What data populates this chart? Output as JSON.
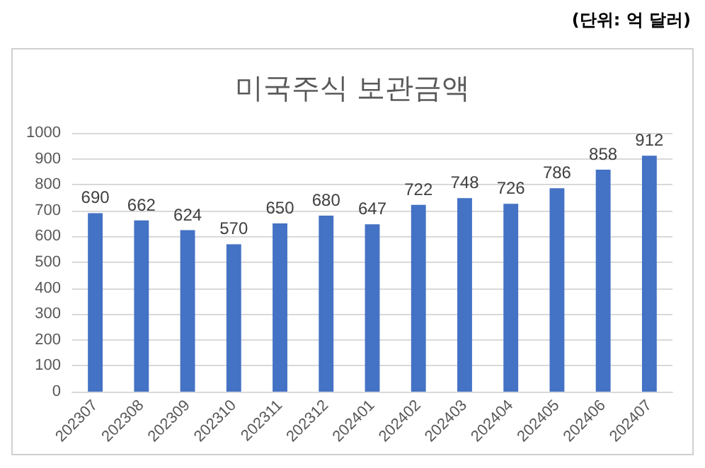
{
  "chart_data": {
    "type": "bar",
    "title": "미국주식 보관금액",
    "categories": [
      "202307",
      "202308",
      "202309",
      "202310",
      "202311",
      "202312",
      "202401",
      "202402",
      "202403",
      "202404",
      "202405",
      "202406",
      "202407"
    ],
    "values": [
      690,
      662,
      624,
      570,
      650,
      680,
      647,
      722,
      748,
      726,
      786,
      858,
      912
    ],
    "color": "#4472c4",
    "ylim": [
      0,
      1000
    ],
    "yticks": [
      0,
      100,
      200,
      300,
      400,
      500,
      600,
      700,
      800,
      900,
      1000
    ],
    "grid": "y",
    "data_labels": true,
    "annotations": [
      "(단위: 억 달러)"
    ]
  }
}
